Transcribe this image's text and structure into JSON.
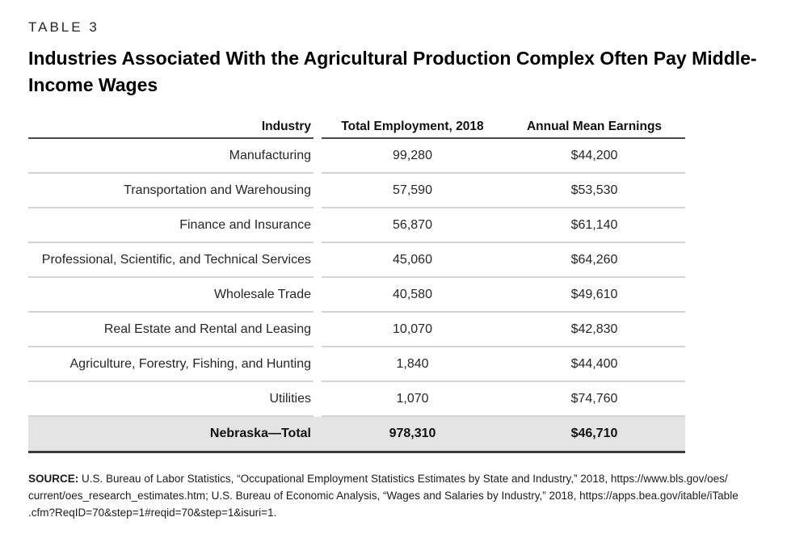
{
  "page": {
    "kicker": "TABLE 3",
    "title": "Industries Associated With the Agricultural Production Complex Often Pay Middle-Income Wages"
  },
  "table": {
    "columns": [
      "Industry",
      "Total Employment, 2018",
      "Annual Mean Earnings"
    ],
    "rows": [
      {
        "industry": "Manufacturing",
        "employment": "99,280",
        "earnings": "$44,200"
      },
      {
        "industry": "Transportation and Warehousing",
        "employment": "57,590",
        "earnings": "$53,530"
      },
      {
        "industry": "Finance and Insurance",
        "employment": "56,870",
        "earnings": "$61,140"
      },
      {
        "industry": "Professional, Scientific, and Technical Services",
        "employment": "45,060",
        "earnings": "$64,260"
      },
      {
        "industry": "Wholesale Trade",
        "employment": "40,580",
        "earnings": "$49,610"
      },
      {
        "industry": "Real Estate and Rental and Leasing",
        "employment": "10,070",
        "earnings": "$42,830"
      },
      {
        "industry": "Agriculture, Forestry, Fishing, and Hunting",
        "employment": "1,840",
        "earnings": "$44,400"
      },
      {
        "industry": "Utilities",
        "employment": "1,070",
        "earnings": "$74,760"
      }
    ],
    "total": {
      "industry": "Nebraska—Total",
      "employment": "978,310",
      "earnings": "$46,710"
    }
  },
  "source": {
    "label": "SOURCE:",
    "lines": [
      "U.S. Bureau of Labor Statistics, “Occupational Employment Statistics Estimates by State and Industry,” 2018, https://www.bls.gov/oes/",
      "current/oes_research_estimates.htm; U.S. Bureau of Economic Analysis, “Wages and Salaries by Industry,” 2018, https://apps.bea.gov/itable/iTable",
      ".cfm?ReqID=70&step=1#reqid=70&step=1&isuri=1."
    ]
  },
  "colors": {
    "header_rule": "#4a4a4a",
    "row_divider": "#d4d4d4",
    "total_row_background": "#e4e4e4",
    "total_bottom_rule": "#3a3a3a",
    "text": "#1d1d1d"
  },
  "chart_data": {
    "type": "table",
    "title": "Industries Associated With the Agricultural Production Complex Often Pay Middle-Income Wages",
    "columns": [
      "Industry",
      "Total Employment, 2018",
      "Annual Mean Earnings"
    ],
    "rows": [
      [
        "Manufacturing",
        99280,
        44200
      ],
      [
        "Transportation and Warehousing",
        57590,
        53530
      ],
      [
        "Finance and Insurance",
        56870,
        61140
      ],
      [
        "Professional, Scientific, and Technical Services",
        45060,
        64260
      ],
      [
        "Wholesale Trade",
        40580,
        49610
      ],
      [
        "Real Estate and Rental and Leasing",
        10070,
        42830
      ],
      [
        "Agriculture, Forestry, Fishing, and Hunting",
        1840,
        44400
      ],
      [
        "Utilities",
        1070,
        74760
      ],
      [
        "Nebraska—Total",
        978310,
        46710
      ]
    ]
  }
}
